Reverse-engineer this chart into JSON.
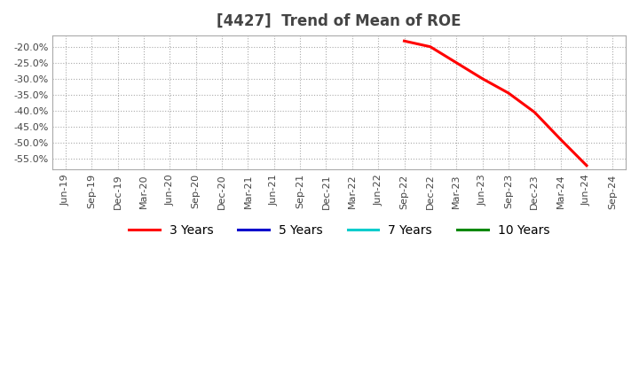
{
  "title": "[4427]  Trend of Mean of ROE",
  "title_fontsize": 12,
  "title_color": "#444444",
  "background_color": "#ffffff",
  "plot_bg_color": "#ffffff",
  "grid_color": "#aaaaaa",
  "grid_style": "dotted",
  "ylim": [
    -0.585,
    -0.165
  ],
  "yticks": [
    -0.2,
    -0.25,
    -0.3,
    -0.35,
    -0.4,
    -0.45,
    -0.5,
    -0.55
  ],
  "ytick_labels": [
    "-20.0%",
    "-25.0%",
    "-30.0%",
    "-35.0%",
    "-40.0%",
    "-45.0%",
    "-50.0%",
    "-55.0%"
  ],
  "x_dates": [
    "Jun-19",
    "Sep-19",
    "Dec-19",
    "Mar-20",
    "Jun-20",
    "Sep-20",
    "Dec-20",
    "Mar-21",
    "Jun-21",
    "Sep-21",
    "Dec-21",
    "Mar-22",
    "Jun-22",
    "Sep-22",
    "Dec-22",
    "Mar-23",
    "Jun-23",
    "Sep-23",
    "Dec-23",
    "Mar-24",
    "Jun-24",
    "Sep-24"
  ],
  "series_3y_x": [
    "Sep-22",
    "Dec-22",
    "Mar-23",
    "Jun-23",
    "Sep-23",
    "Dec-23",
    "Mar-24",
    "Jun-24"
  ],
  "series_3y_y": [
    -0.182,
    -0.2,
    -0.25,
    -0.3,
    -0.345,
    -0.405,
    -0.49,
    -0.572
  ],
  "series_3y_color": "#ff0000",
  "series_3y_label": "3 Years",
  "series_5y_color": "#0000cc",
  "series_5y_label": "5 Years",
  "series_7y_color": "#00cccc",
  "series_7y_label": "7 Years",
  "series_10y_color": "#008800",
  "series_10y_label": "10 Years",
  "line_width": 2.2,
  "legend_fontsize": 10,
  "tick_fontsize": 8,
  "tick_color": "#444444",
  "spine_color": "#aaaaaa"
}
